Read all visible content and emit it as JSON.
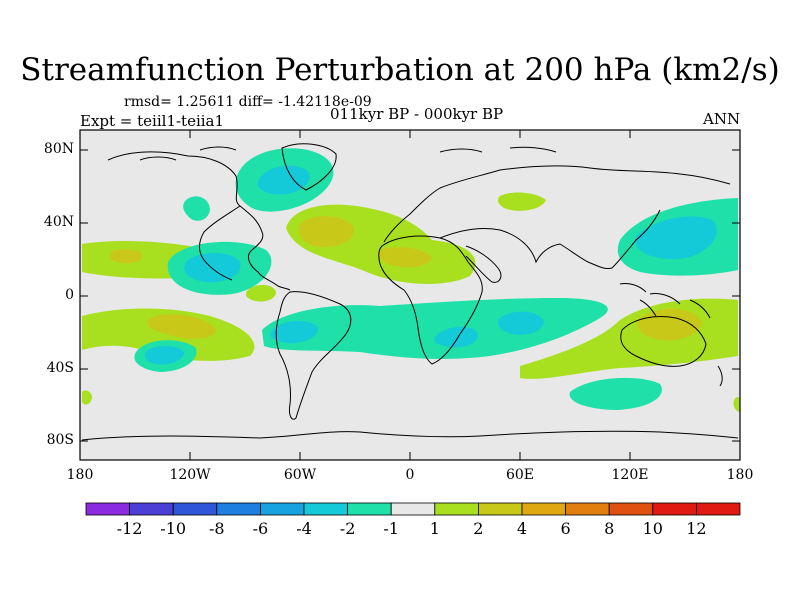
{
  "figure": {
    "title": "Streamfunction Perturbation at 200 hPa (km2/s)",
    "stats": "rmsd= 1.25611 diff= -1.42118e-09",
    "experiment": "Expt = teiil1-teiia1",
    "period": "011kyr BP - 000kyr BP",
    "season": "ANN"
  },
  "axes": {
    "y_ticks": [
      "80N",
      "40N",
      "0",
      "40S",
      "80S"
    ],
    "x_ticks": [
      "180",
      "120W",
      "60W",
      "0",
      "60E",
      "120E",
      "180"
    ]
  },
  "colorbar": {
    "labels": [
      "-12",
      "-10",
      "-8",
      "-6",
      "-4",
      "-2",
      "-1",
      "1",
      "2",
      "4",
      "6",
      "8",
      "10",
      "12"
    ],
    "colors": [
      "#8a2be2",
      "#4b3fd6",
      "#2f56d8",
      "#1e7fe0",
      "#17a3e0",
      "#14c9d8",
      "#1ee0a8",
      "#e8e8e8",
      "#a8e020",
      "#c8c818",
      "#e0a810",
      "#e07e10",
      "#e05010",
      "#e01a10"
    ]
  },
  "colors": {
    "land_background": "#e8e8e8",
    "coastline": "#000000",
    "positive_light": "#a8e020",
    "positive_mid": "#c8c818",
    "negative_light": "#1ee0a8",
    "negative_mid": "#14c9d8"
  }
}
